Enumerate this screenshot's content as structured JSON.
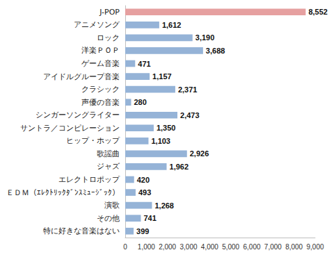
{
  "chart_data": {
    "type": "bar",
    "orientation": "horizontal",
    "categories": [
      "J-POP",
      "アニメソング",
      "ロック",
      "洋楽ＰＯＰ",
      "ゲーム音楽",
      "アイドルグループ音楽",
      "クラシック",
      "声優の音楽",
      "シンガーソングライター",
      "サントラ／コンピレーション",
      "ヒップ・ホップ",
      "歌謡曲",
      "ジャズ",
      "エレクトロポップ",
      "ＥＤＭ（ｴﾚｸﾄﾘｯｸﾀﾞﾝｽﾐｭｰｼﾞｯｸ）",
      "演歌",
      "その他",
      "特に好きな音楽はない"
    ],
    "values": [
      8552,
      1612,
      3190,
      3688,
      471,
      1157,
      2371,
      280,
      2473,
      1350,
      1103,
      2926,
      1962,
      420,
      493,
      1268,
      741,
      399
    ],
    "value_labels": [
      "8,552",
      "1,612",
      "3,190",
      "3,688",
      "471",
      "1,157",
      "2,371",
      "280",
      "2,473",
      "1,350",
      "1,103",
      "2,926",
      "1,962",
      "420",
      "493",
      "1,268",
      "741",
      "399"
    ],
    "colors": [
      "#e6a0a0",
      "#95b3d7",
      "#95b3d7",
      "#95b3d7",
      "#95b3d7",
      "#95b3d7",
      "#95b3d7",
      "#95b3d7",
      "#95b3d7",
      "#95b3d7",
      "#95b3d7",
      "#95b3d7",
      "#95b3d7",
      "#95b3d7",
      "#95b3d7",
      "#95b3d7",
      "#95b3d7",
      "#95b3d7"
    ],
    "xlim": [
      0,
      9000
    ],
    "xticks": [
      0,
      {
        "value": 1000,
        "label": "1,000"
      },
      {
        "value": 2000,
        "label": "2,000"
      },
      {
        "value": 3000,
        "label": "3,000"
      },
      {
        "value": 4000,
        "label": "4,000"
      },
      {
        "value": 5000,
        "label": "5,000"
      },
      {
        "value": 6000,
        "label": "6,000"
      },
      {
        "value": 7000,
        "label": "7,000"
      },
      {
        "value": 8000,
        "label": "8,000"
      },
      {
        "value": 9000,
        "label": "9,000"
      }
    ],
    "grid": false,
    "data_labels": true
  }
}
